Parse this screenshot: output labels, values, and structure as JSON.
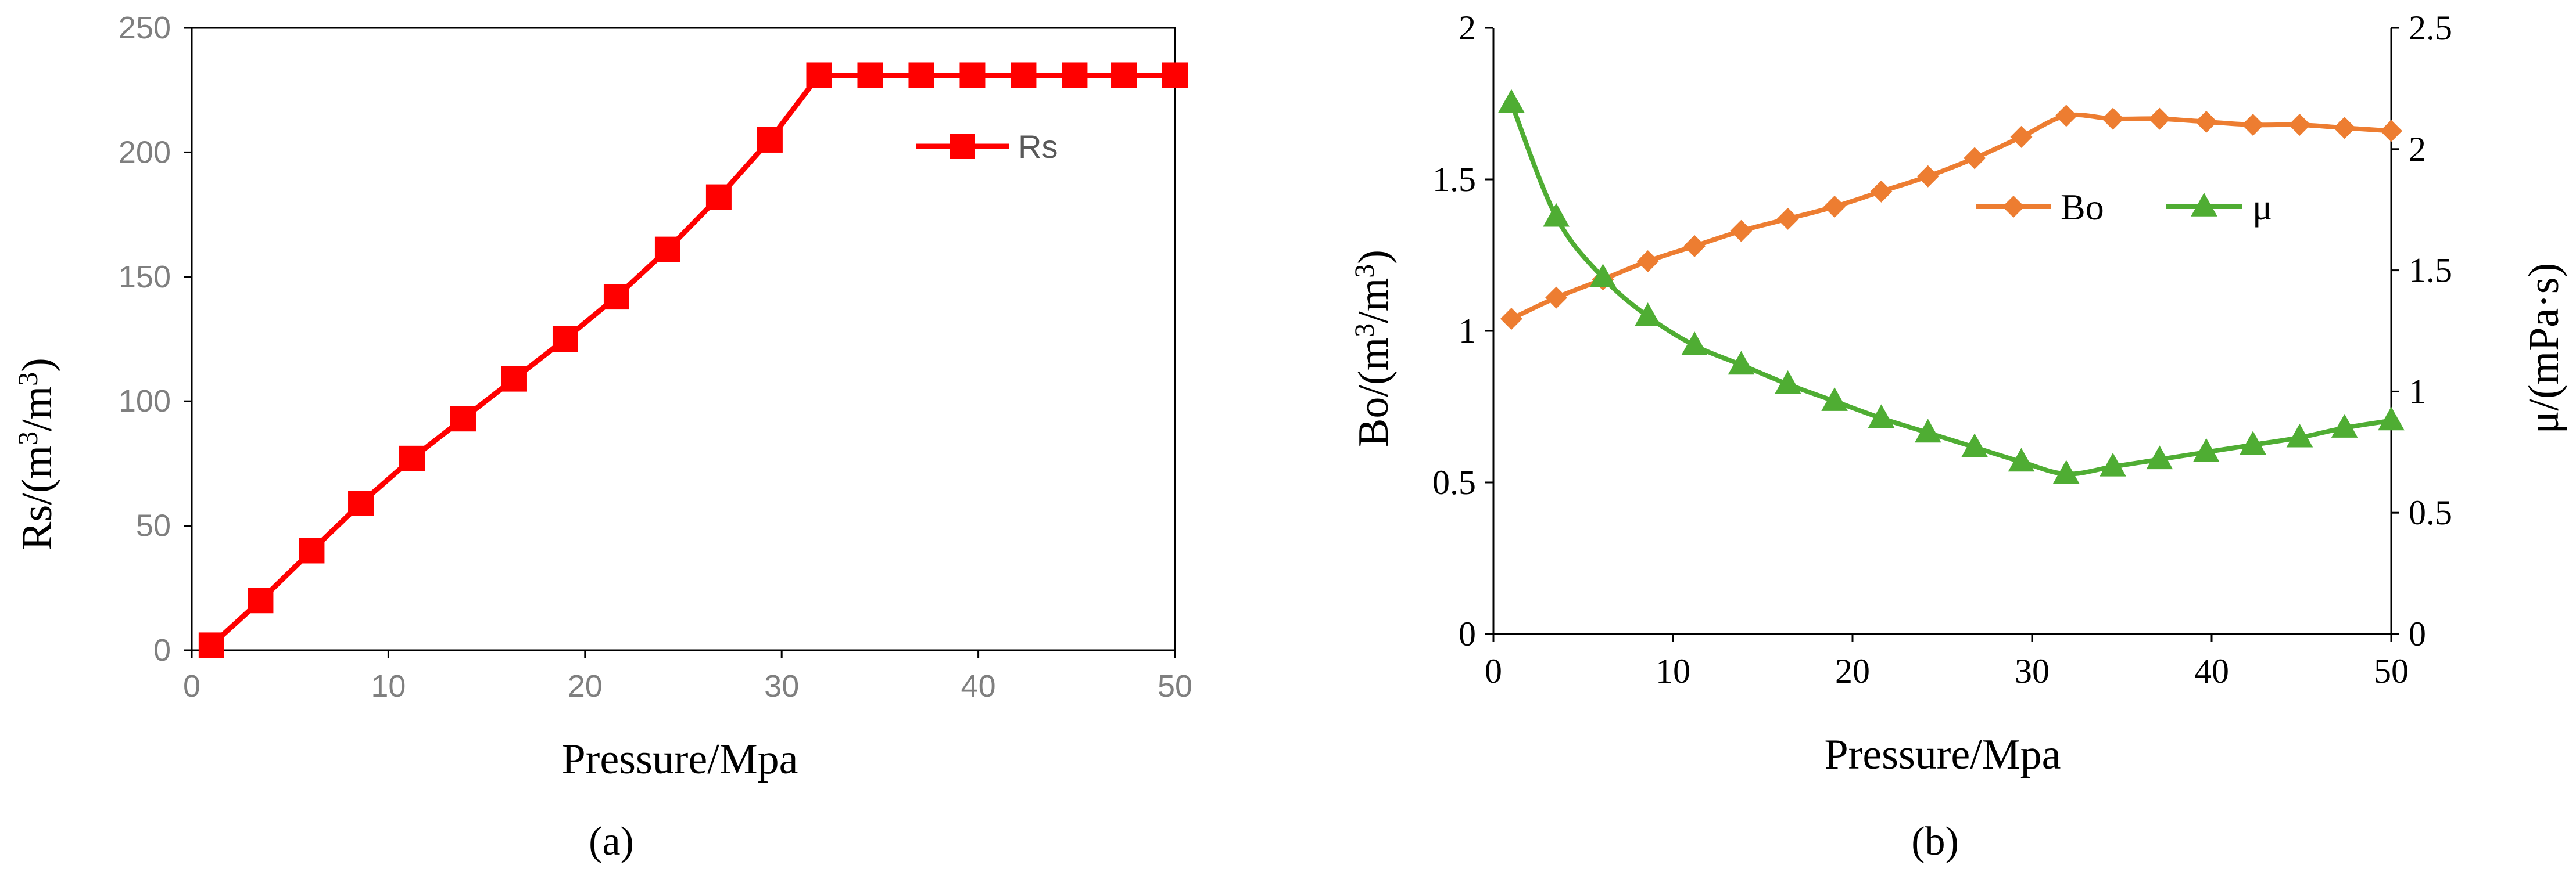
{
  "chart_data": [
    {
      "type": "line",
      "panel_label": "(a)",
      "xlabel": "Pressure/Mpa",
      "ylabel": "Rs/(m3/m3)",
      "xlim": [
        0,
        50
      ],
      "ylim": [
        0,
        250
      ],
      "x_ticks": [
        0,
        10,
        20,
        30,
        40,
        50
      ],
      "y_ticks": [
        0,
        50,
        100,
        150,
        200,
        250
      ],
      "grid": false,
      "legend_position": "top-right",
      "series": [
        {
          "name": "Rs",
          "color": "#ff0000",
          "marker": "square",
          "x": [
            1.0,
            3.5,
            6.1,
            8.6,
            11.2,
            13.8,
            16.4,
            19.0,
            21.6,
            24.2,
            26.8,
            29.4,
            31.9,
            34.5,
            37.1,
            39.7,
            42.3,
            44.9,
            47.4,
            50.0
          ],
          "y": [
            2,
            20,
            40,
            59,
            77,
            93,
            109,
            125,
            142,
            161,
            182,
            205,
            231,
            231,
            231,
            231,
            231,
            231,
            231,
            231
          ]
        }
      ]
    },
    {
      "type": "line",
      "panel_label": "(b)",
      "xlabel": "Pressure/Mpa",
      "ylabel": "Bo/(m3/m3)",
      "y2label": "μ/(mPa·s)",
      "xlim": [
        0,
        50
      ],
      "ylim": [
        0,
        2
      ],
      "y2lim": [
        0,
        2.5
      ],
      "x_ticks": [
        0,
        10,
        20,
        30,
        40,
        50
      ],
      "y_ticks": [
        "0",
        "0.5",
        "1",
        "1.5",
        "2"
      ],
      "y2_ticks": [
        "0",
        "0.5",
        "1",
        "1.5",
        "2",
        "2.5"
      ],
      "grid": false,
      "legend_position": "top-right",
      "series": [
        {
          "name": "Bo",
          "axis": "left",
          "color": "#ed7d31",
          "marker": "diamond",
          "x": [
            1.0,
            3.5,
            6.1,
            8.6,
            11.2,
            13.8,
            16.4,
            19.0,
            21.6,
            24.2,
            26.8,
            29.4,
            31.9,
            34.5,
            37.1,
            39.7,
            42.3,
            44.9,
            47.4,
            50.0
          ],
          "y": [
            1.04,
            1.11,
            1.17,
            1.23,
            1.28,
            1.33,
            1.37,
            1.41,
            1.46,
            1.51,
            1.57,
            1.64,
            1.71,
            1.7,
            1.7,
            1.69,
            1.68,
            1.68,
            1.67,
            1.66
          ]
        },
        {
          "name": "μ",
          "axis": "right",
          "color": "#4fad33",
          "marker": "triangle",
          "x": [
            1.0,
            3.5,
            6.1,
            8.6,
            11.2,
            13.8,
            16.4,
            19.0,
            21.6,
            24.2,
            26.8,
            29.4,
            31.9,
            34.5,
            37.1,
            39.7,
            42.3,
            44.9,
            47.4,
            50.0
          ],
          "y": [
            2.19,
            1.72,
            1.47,
            1.31,
            1.19,
            1.11,
            1.03,
            0.96,
            0.89,
            0.83,
            0.77,
            0.71,
            0.66,
            0.69,
            0.72,
            0.75,
            0.78,
            0.81,
            0.85,
            0.88
          ]
        }
      ]
    }
  ]
}
